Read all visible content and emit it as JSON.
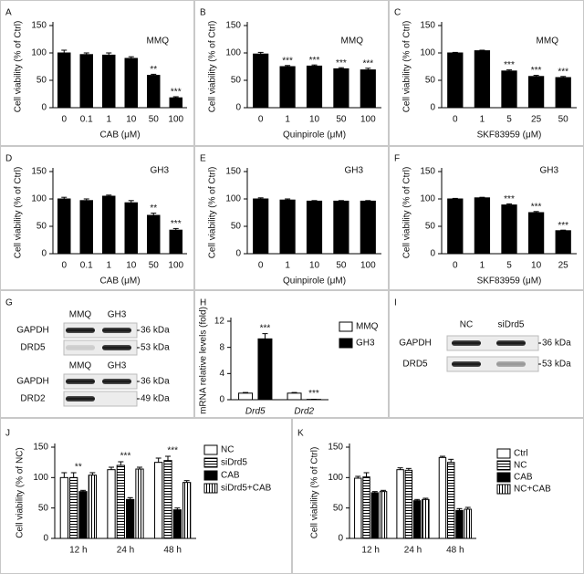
{
  "chart_data": [
    {
      "type": "bar",
      "label": "A",
      "annotation": "MMQ",
      "ylabel": "Cell viability (% of Ctrl)",
      "xlabel": "CAB (μM)",
      "color": "#000000",
      "categories": [
        "0",
        "0.1",
        "1",
        "10",
        "50",
        "100"
      ],
      "values": [
        100,
        97,
        96,
        90,
        59,
        18
      ],
      "errors": [
        5,
        3,
        4,
        3,
        2,
        2
      ],
      "significance": [
        null,
        null,
        null,
        null,
        "**",
        "***"
      ],
      "ylim": [
        0,
        150
      ],
      "yticks": [
        0,
        50,
        100,
        150
      ]
    },
    {
      "type": "bar",
      "label": "B",
      "annotation": "MMQ",
      "ylabel": "Cell viability (% of Ctrl)",
      "xlabel": "Quinpirole (μM)",
      "color": "#000000",
      "categories": [
        "0",
        "1",
        "10",
        "50",
        "100"
      ],
      "values": [
        98,
        75,
        76,
        71,
        69
      ],
      "errors": [
        3,
        2,
        2,
        2,
        3
      ],
      "significance": [
        null,
        "***",
        "***",
        "***",
        "***"
      ],
      "ylim": [
        0,
        150
      ],
      "yticks": [
        0,
        50,
        100,
        150
      ]
    },
    {
      "type": "bar",
      "label": "C",
      "annotation": "MMQ",
      "ylabel": "Cell viability (% of Ctrl)",
      "xlabel": "SKF83959 (μM)",
      "color": "#000000",
      "categories": [
        "0",
        "1",
        "5",
        "25",
        "50"
      ],
      "values": [
        100,
        104,
        67,
        57,
        55
      ],
      "errors": [
        1,
        1,
        2,
        2,
        2
      ],
      "significance": [
        null,
        null,
        "***",
        "***",
        "***"
      ],
      "ylim": [
        0,
        150
      ],
      "yticks": [
        0,
        50,
        100,
        150
      ]
    },
    {
      "type": "bar",
      "label": "D",
      "annotation": "GH3",
      "ylabel": "Cell viability (% of Ctrl)",
      "xlabel": "CAB (μM)",
      "color": "#000000",
      "categories": [
        "0",
        "0.1",
        "1",
        "10",
        "50",
        "100"
      ],
      "values": [
        100,
        97,
        105,
        93,
        70,
        43
      ],
      "errors": [
        3,
        3,
        2,
        4,
        4,
        3
      ],
      "significance": [
        null,
        null,
        null,
        null,
        "**",
        "***"
      ],
      "ylim": [
        0,
        150
      ],
      "yticks": [
        0,
        50,
        100,
        150
      ]
    },
    {
      "type": "bar",
      "label": "E",
      "annotation": "GH3",
      "ylabel": "Cell viability (% of Ctrl)",
      "xlabel": "Quinpirole (μM)",
      "color": "#000000",
      "categories": [
        "0",
        "1",
        "10",
        "50",
        "100"
      ],
      "values": [
        100,
        98,
        96,
        96,
        96
      ],
      "errors": [
        2,
        2,
        1,
        1,
        1
      ],
      "significance": [
        null,
        null,
        null,
        null,
        null
      ],
      "ylim": [
        0,
        150
      ],
      "yticks": [
        0,
        50,
        100,
        150
      ]
    },
    {
      "type": "bar",
      "label": "F",
      "annotation": "GH3",
      "ylabel": "Cell viability (% of Ctrl)",
      "xlabel": "SKF83959 (μM)",
      "color": "#000000",
      "categories": [
        "0",
        "1",
        "5",
        "10",
        "25"
      ],
      "values": [
        100,
        102,
        89,
        75,
        42
      ],
      "errors": [
        1,
        1,
        2,
        2,
        1
      ],
      "significance": [
        null,
        null,
        "***",
        "***",
        "***"
      ],
      "ylim": [
        0,
        150
      ],
      "yticks": [
        0,
        50,
        100,
        150
      ]
    },
    {
      "type": "grouped-bar",
      "label": "H",
      "ylabel": "mRNA relative levels (fold)",
      "categories": [
        "Drd5",
        "Drd2"
      ],
      "significance": [
        "***",
        "***"
      ],
      "series": [
        {
          "name": "MMQ",
          "color": "#ffffff",
          "values": [
            1,
            1
          ],
          "errors": [
            0.1,
            0.1
          ]
        },
        {
          "name": "GH3",
          "color": "#000000",
          "values": [
            9.3,
            0.05
          ],
          "errors": [
            0.8,
            0.02
          ]
        }
      ],
      "ylim": [
        0,
        12
      ],
      "yticks": [
        0,
        4,
        8,
        12
      ]
    },
    {
      "type": "grouped-bar",
      "label": "J",
      "ylabel": "Cell viability (% of NC)",
      "categories": [
        "12 h",
        "24 h",
        "48 h"
      ],
      "significance": [
        "**",
        "***",
        "***"
      ],
      "series": [
        {
          "name": "NC",
          "color": "#ffffff",
          "values": [
            100,
            113,
            125
          ],
          "errors": [
            8,
            4,
            7
          ]
        },
        {
          "name": "siDrd5",
          "color": "hstripe",
          "values": [
            100,
            120,
            128
          ],
          "errors": [
            8,
            6,
            7
          ]
        },
        {
          "name": "CAB",
          "color": "#000000",
          "values": [
            77,
            64,
            47
          ],
          "errors": [
            2,
            3,
            3
          ]
        },
        {
          "name": "siDrd5+CAB",
          "color": "vstripe",
          "values": [
            104,
            114,
            92
          ],
          "errors": [
            4,
            3,
            3
          ]
        }
      ],
      "ylim": [
        0,
        150
      ],
      "yticks": [
        0,
        50,
        100,
        150
      ]
    },
    {
      "type": "grouped-bar",
      "label": "K",
      "ylabel": "Cell viability (% of Ctrl)",
      "categories": [
        "12 h",
        "24 h",
        "48 h"
      ],
      "significance": [
        null,
        null,
        null
      ],
      "series": [
        {
          "name": "Ctrl",
          "color": "#ffffff",
          "values": [
            99,
            113,
            133
          ],
          "errors": [
            3,
            3,
            2
          ]
        },
        {
          "name": "NC",
          "color": "hstripe",
          "values": [
            101,
            112,
            125
          ],
          "errors": [
            7,
            3,
            5
          ]
        },
        {
          "name": "CAB",
          "color": "#000000",
          "values": [
            75,
            62,
            46
          ],
          "errors": [
            2,
            2,
            3
          ]
        },
        {
          "name": "NC+CAB",
          "color": "vstripe",
          "values": [
            77,
            64,
            48
          ],
          "errors": [
            2,
            2,
            3
          ]
        }
      ],
      "ylim": [
        0,
        150
      ],
      "yticks": [
        0,
        50,
        100,
        150
      ]
    }
  ],
  "blots": [
    {
      "label": "G",
      "sections": [
        {
          "lanes": [
            "MMQ",
            "GH3"
          ],
          "rows": [
            {
              "name": "GAPDH",
              "size": "36 kDa"
            },
            {
              "name": "DRD5",
              "size": "53 kDa"
            }
          ]
        },
        {
          "lanes": [
            "MMQ",
            "GH3"
          ],
          "rows": [
            {
              "name": "GAPDH",
              "size": "36 kDa"
            },
            {
              "name": "DRD2",
              "size": "49 kDa"
            }
          ]
        }
      ]
    },
    {
      "label": "I",
      "sections": [
        {
          "lanes": [
            "NC",
            "siDrd5"
          ],
          "rows": [
            {
              "name": "GAPDH",
              "size": "36 kDa"
            },
            {
              "name": "DRD5",
              "size": "53 kDa"
            }
          ]
        }
      ]
    }
  ]
}
